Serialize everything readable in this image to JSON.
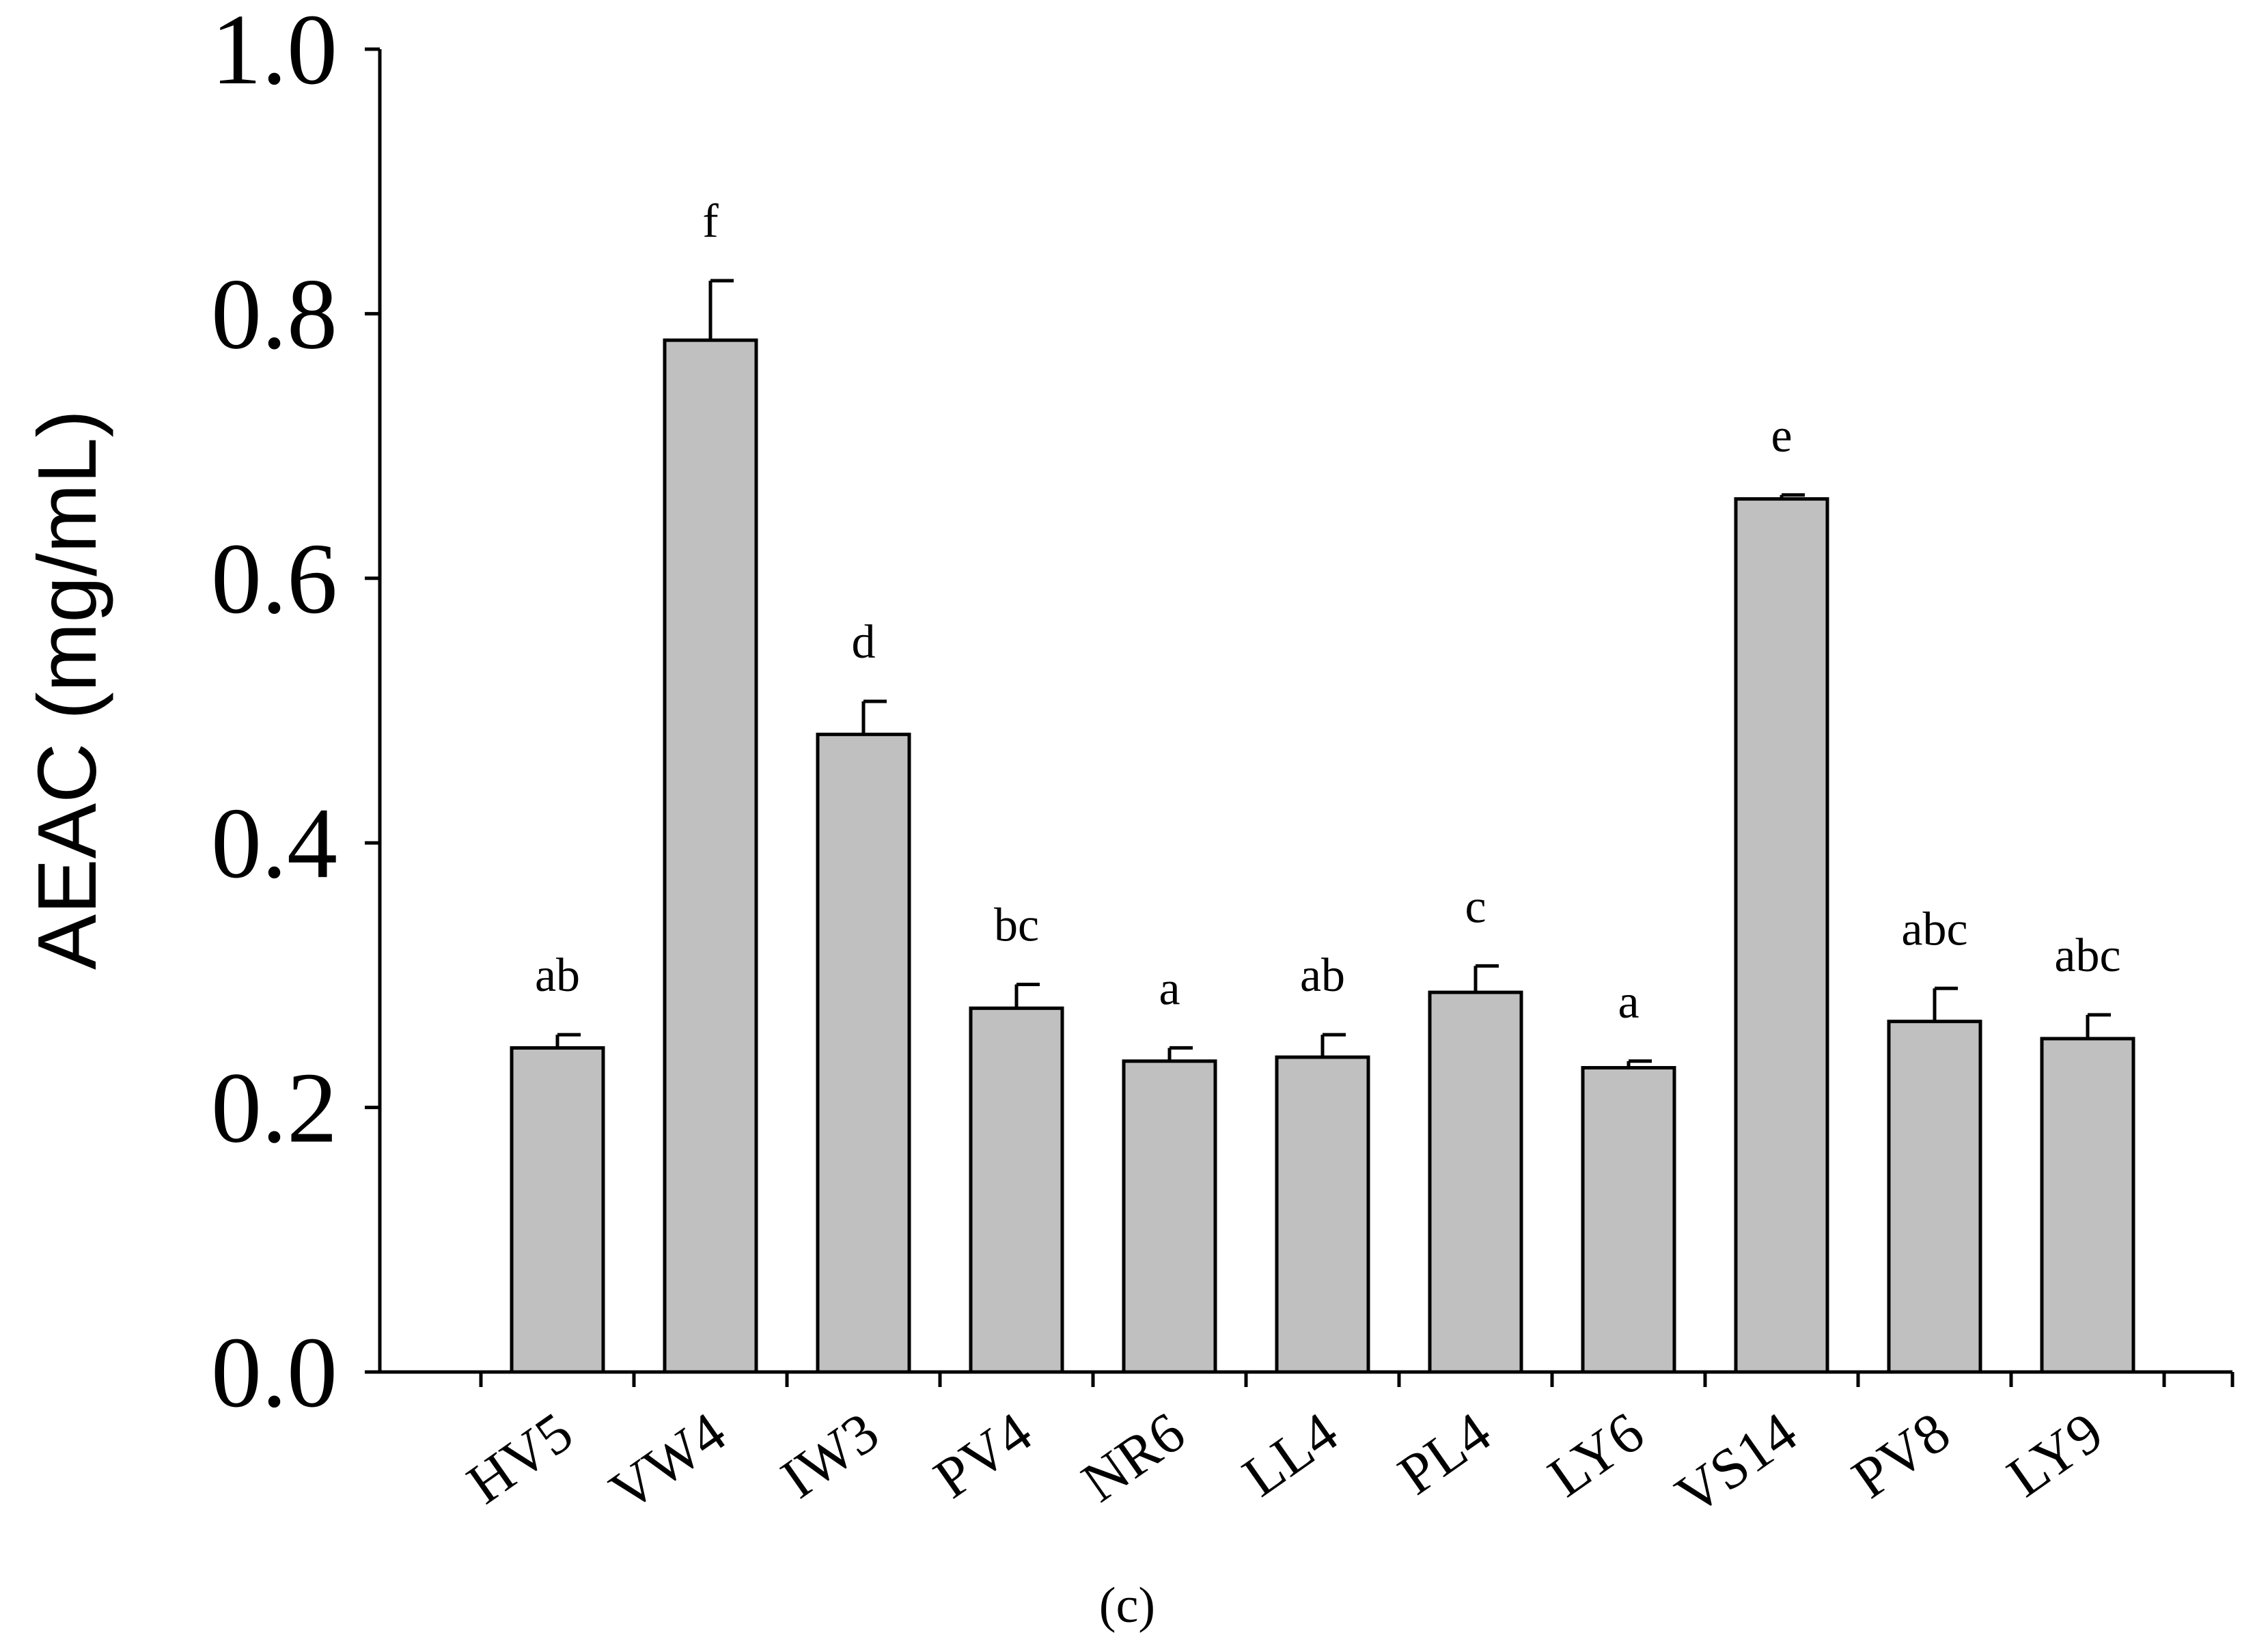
{
  "chart_data": {
    "type": "bar",
    "categories": [
      "HV5",
      "VW4",
      "IW3",
      "PV4",
      "NR6",
      "LL4",
      "PL4",
      "LY6",
      "VS14",
      "PV8",
      "LY9"
    ],
    "values": [
      0.245,
      0.78,
      0.482,
      0.275,
      0.235,
      0.238,
      0.287,
      0.23,
      0.66,
      0.265,
      0.252
    ],
    "errors": [
      0.01,
      0.045,
      0.025,
      0.018,
      0.01,
      0.017,
      0.02,
      0.005,
      0.003,
      0.025,
      0.018
    ],
    "significance": [
      "ab",
      "f",
      "d",
      "bc",
      "a",
      "ab",
      "c",
      "a",
      "e",
      "abc",
      "abc"
    ],
    "ylabel": "AEAC (mg/mL)",
    "xlabel": "",
    "ylim": [
      0,
      1.0
    ],
    "yticks": [
      "0.0",
      "0.2",
      "0.4",
      "0.6",
      "0.8",
      "1.0"
    ],
    "grid": false,
    "bar_color": "#c0c0c0",
    "panel_label": "(c)"
  }
}
